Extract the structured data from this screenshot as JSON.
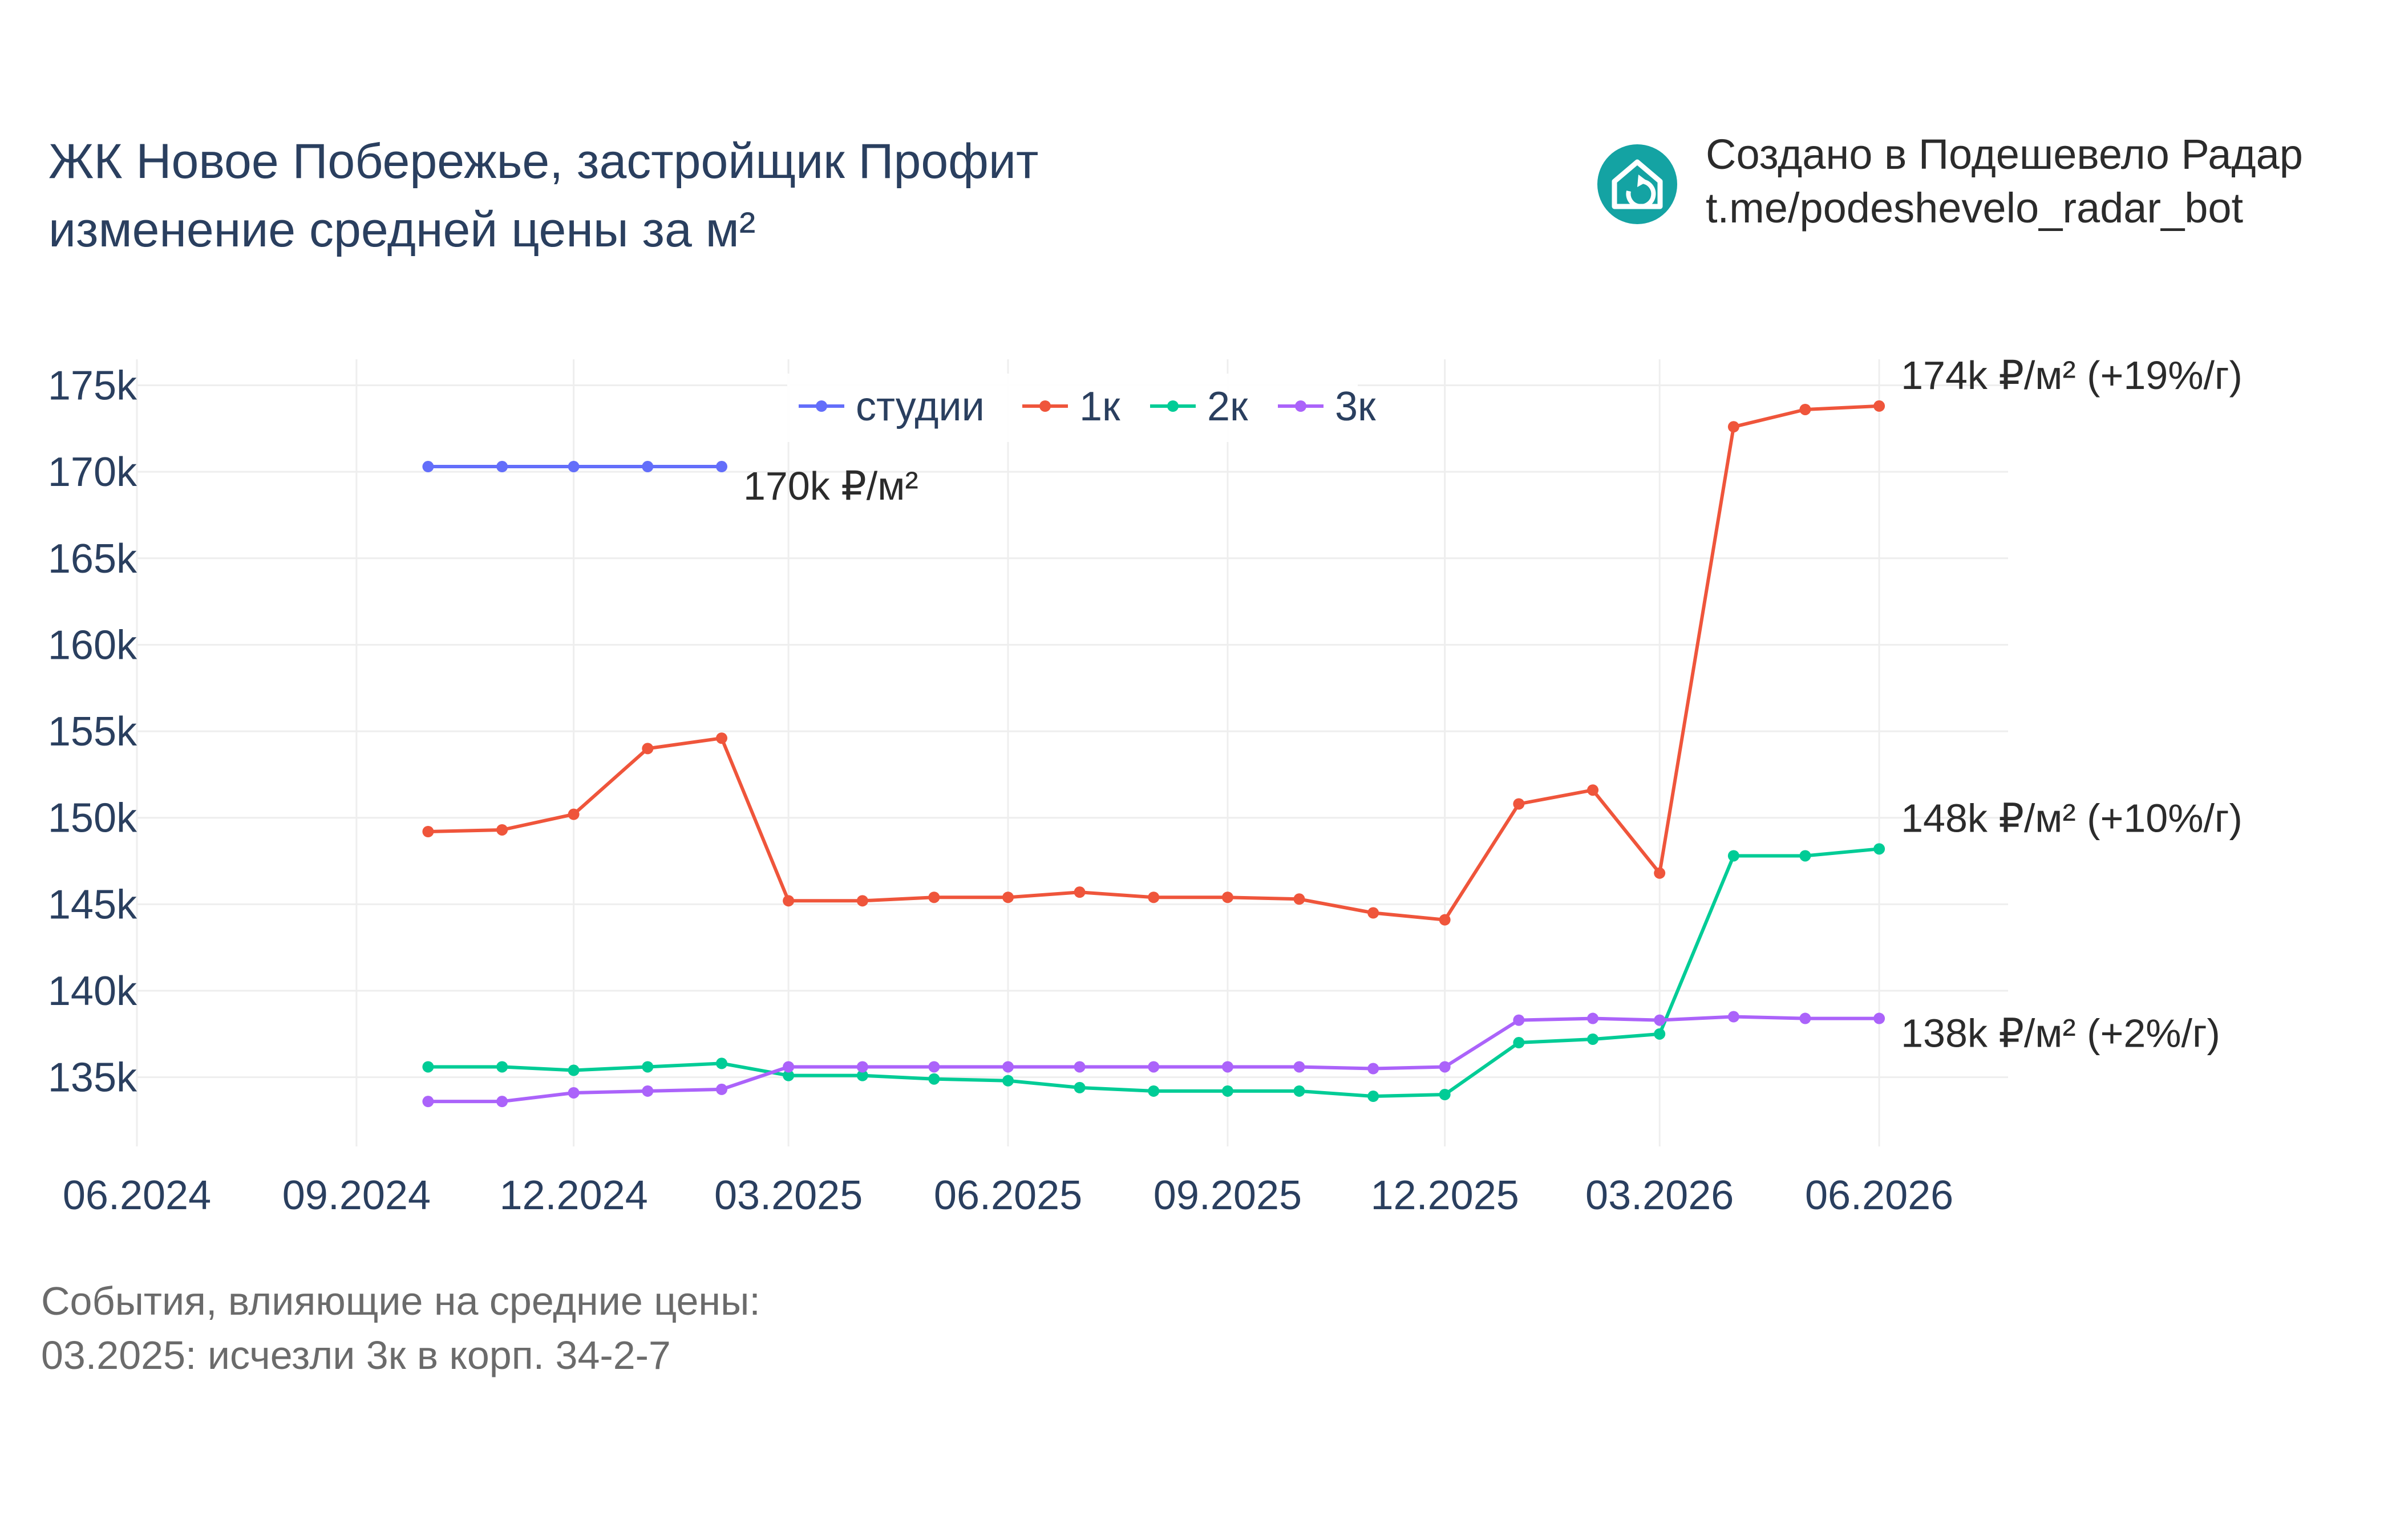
{
  "header": {
    "title_line1": "ЖК Новое Побережье, застройщик Профит",
    "title_line2": "изменение средней цены за м²"
  },
  "branding": {
    "line1": "Создано в Подешевело Радар",
    "line2": "t.me/podeshevelo_radar_bot",
    "icon": "house-refresh-icon",
    "icon_color": "#14a3a3"
  },
  "notes": {
    "line1": "События, влияющие на средние цены:",
    "line2": "03.2025: исчезли 3к в корп. 34-2-7"
  },
  "chart_data": {
    "type": "line",
    "title": "ЖК Новое Побережье, застройщик Профит изменение средней цены за м²",
    "xlabel": "",
    "ylabel": "",
    "x_ticks": [
      "06.2024",
      "09.2024",
      "12.2024",
      "03.2025",
      "06.2025",
      "09.2025",
      "12.2025",
      "03.2026",
      "06.2026"
    ],
    "y_ticks": [
      "135k",
      "140k",
      "145k",
      "150k",
      "155k",
      "160k",
      "165k",
      "170k",
      "175k"
    ],
    "y_tick_values": [
      135000,
      140000,
      145000,
      150000,
      155000,
      160000,
      165000,
      170000,
      175000
    ],
    "ylim": [
      131000,
      176500
    ],
    "xlim": [
      "2024-06-01",
      "2026-07-25"
    ],
    "grid": true,
    "legend_position": "top-center",
    "series": [
      {
        "name": "студии",
        "color": "#636efa",
        "end_label": "170k ₽/м²",
        "x": [
          "2024-10-01",
          "2024-11-01",
          "2024-12-01",
          "2025-01-01",
          "2025-02-01"
        ],
        "y": [
          170300,
          170300,
          170300,
          170300,
          170300
        ]
      },
      {
        "name": "1к",
        "color": "#ef553b",
        "end_label": "174k ₽/м² (+19%/г)",
        "x": [
          "2024-10-01",
          "2024-11-01",
          "2024-12-01",
          "2025-01-01",
          "2025-02-01",
          "2025-03-01",
          "2025-04-01",
          "2025-05-01",
          "2025-06-01",
          "2025-07-01",
          "2025-08-01",
          "2025-09-01",
          "2025-10-01",
          "2025-11-01",
          "2025-12-01",
          "2026-01-01",
          "2026-02-01",
          "2026-03-01",
          "2026-04-01",
          "2026-05-01",
          "2026-06-01"
        ],
        "y": [
          149200,
          149300,
          150200,
          154000,
          154600,
          145200,
          145200,
          145400,
          145400,
          145700,
          145400,
          145400,
          145300,
          144500,
          144100,
          150800,
          151600,
          146800,
          172600,
          173600,
          173800
        ]
      },
      {
        "name": "2к",
        "color": "#00cc96",
        "end_label": "148k ₽/м² (+10%/г)",
        "x": [
          "2024-10-01",
          "2024-11-01",
          "2024-12-01",
          "2025-01-01",
          "2025-02-01",
          "2025-03-01",
          "2025-04-01",
          "2025-05-01",
          "2025-06-01",
          "2025-07-01",
          "2025-08-01",
          "2025-09-01",
          "2025-10-01",
          "2025-11-01",
          "2025-12-01",
          "2026-01-01",
          "2026-02-01",
          "2026-03-01",
          "2026-04-01",
          "2026-05-01",
          "2026-06-01"
        ],
        "y": [
          135600,
          135600,
          135400,
          135600,
          135800,
          135100,
          135100,
          134900,
          134800,
          134400,
          134200,
          134200,
          134200,
          133900,
          134000,
          137000,
          137200,
          137500,
          147800,
          147800,
          148200
        ]
      },
      {
        "name": "3к",
        "color": "#ab63fa",
        "end_label": "138k ₽/м² (+2%/г)",
        "x": [
          "2024-10-01",
          "2024-11-01",
          "2024-12-01",
          "2025-01-01",
          "2025-02-01",
          "2025-03-01",
          "2025-04-01",
          "2025-05-01",
          "2025-06-01",
          "2025-07-01",
          "2025-08-01",
          "2025-09-01",
          "2025-10-01",
          "2025-11-01",
          "2025-12-01",
          "2026-01-01",
          "2026-02-01",
          "2026-03-01",
          "2026-04-01",
          "2026-05-01",
          "2026-06-01"
        ],
        "y": [
          133600,
          133600,
          134100,
          134200,
          134300,
          135600,
          135600,
          135600,
          135600,
          135600,
          135600,
          135600,
          135600,
          135500,
          135600,
          138300,
          138400,
          138300,
          138500,
          138400,
          138400
        ]
      }
    ]
  }
}
